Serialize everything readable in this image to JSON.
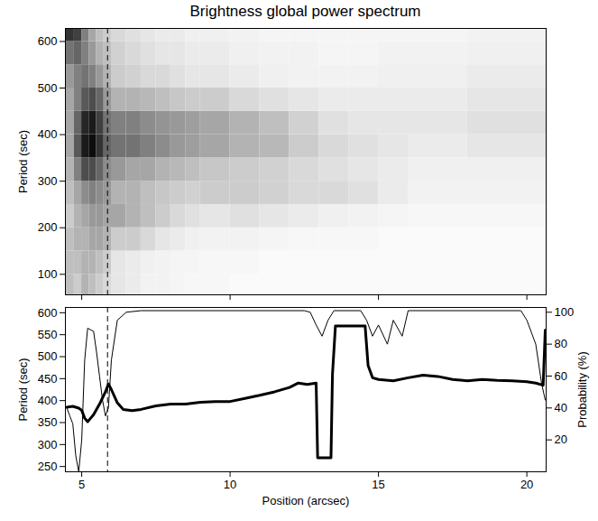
{
  "chart_data": [
    {
      "type": "heatmap",
      "title": "Brightness global power spectrum",
      "ylabel": "Period (sec)",
      "xlim": [
        4.45,
        20.65
      ],
      "xticks": [
        5,
        10,
        15,
        20
      ],
      "ylim": [
        56,
        628
      ],
      "yticks": [
        100,
        200,
        300,
        400,
        500,
        600
      ],
      "tick_labels": "y",
      "vline_x": 5.87,
      "x_bins": [
        4.45,
        4.75,
        5.0,
        5.25,
        5.5,
        5.75,
        6.0,
        6.5,
        7,
        7.5,
        8,
        8.5,
        9,
        10,
        11,
        12,
        13,
        14,
        15,
        16,
        18,
        20.65
      ],
      "y_bins": [
        56,
        100,
        150,
        200,
        250,
        300,
        350,
        400,
        450,
        500,
        550,
        600,
        628
      ],
      "zlim": [
        0,
        1
      ],
      "power": [
        [
          0.25,
          0.2,
          0.3,
          0.25,
          0.2,
          0.15,
          0.1,
          0.08,
          0.05,
          0.05,
          0.04,
          0.03,
          0.03,
          0.02,
          0.02,
          0.02,
          0.02,
          0.02,
          0.02,
          0.02,
          0.02
        ],
        [
          0.25,
          0.25,
          0.3,
          0.3,
          0.25,
          0.2,
          0.1,
          0.08,
          0.06,
          0.05,
          0.04,
          0.04,
          0.03,
          0.03,
          0.02,
          0.02,
          0.02,
          0.02,
          0.02,
          0.02,
          0.02
        ],
        [
          0.25,
          0.3,
          0.3,
          0.35,
          0.35,
          0.3,
          0.2,
          0.2,
          0.15,
          0.1,
          0.08,
          0.06,
          0.05,
          0.05,
          0.04,
          0.03,
          0.03,
          0.03,
          0.02,
          0.02,
          0.02
        ],
        [
          0.2,
          0.3,
          0.35,
          0.4,
          0.4,
          0.35,
          0.35,
          0.3,
          0.25,
          0.2,
          0.15,
          0.12,
          0.1,
          0.12,
          0.1,
          0.08,
          0.06,
          0.05,
          0.04,
          0.03,
          0.03
        ],
        [
          0.25,
          0.35,
          0.45,
          0.5,
          0.45,
          0.4,
          0.3,
          0.3,
          0.25,
          0.22,
          0.2,
          0.18,
          0.2,
          0.2,
          0.18,
          0.15,
          0.15,
          0.12,
          0.08,
          0.05,
          0.05
        ],
        [
          0.3,
          0.5,
          0.7,
          0.7,
          0.6,
          0.45,
          0.4,
          0.35,
          0.35,
          0.3,
          0.28,
          0.25,
          0.22,
          0.2,
          0.18,
          0.15,
          0.12,
          0.1,
          0.08,
          0.06,
          0.06
        ],
        [
          0.35,
          0.65,
          0.9,
          0.95,
          0.8,
          0.6,
          0.55,
          0.55,
          0.5,
          0.45,
          0.4,
          0.38,
          0.35,
          0.3,
          0.28,
          0.2,
          0.15,
          0.12,
          0.1,
          0.08,
          0.1
        ],
        [
          0.35,
          0.6,
          0.85,
          0.9,
          0.75,
          0.55,
          0.5,
          0.5,
          0.45,
          0.42,
          0.4,
          0.38,
          0.35,
          0.3,
          0.25,
          0.18,
          0.12,
          0.1,
          0.1,
          0.1,
          0.12
        ],
        [
          0.35,
          0.5,
          0.65,
          0.7,
          0.6,
          0.4,
          0.3,
          0.3,
          0.28,
          0.25,
          0.22,
          0.2,
          0.2,
          0.15,
          0.12,
          0.1,
          0.08,
          0.08,
          0.08,
          0.08,
          0.1
        ],
        [
          0.4,
          0.5,
          0.55,
          0.5,
          0.4,
          0.3,
          0.2,
          0.18,
          0.15,
          0.15,
          0.12,
          0.1,
          0.1,
          0.08,
          0.06,
          0.05,
          0.05,
          0.05,
          0.06,
          0.06,
          0.08
        ],
        [
          0.55,
          0.6,
          0.5,
          0.4,
          0.3,
          0.25,
          0.18,
          0.15,
          0.12,
          0.1,
          0.1,
          0.08,
          0.08,
          0.06,
          0.05,
          0.05,
          0.04,
          0.04,
          0.05,
          0.05,
          0.06
        ],
        [
          0.8,
          0.75,
          0.5,
          0.35,
          0.25,
          0.2,
          0.15,
          0.12,
          0.1,
          0.08,
          0.08,
          0.06,
          0.06,
          0.05,
          0.04,
          0.04,
          0.04,
          0.04,
          0.04,
          0.04,
          0.05
        ]
      ]
    },
    {
      "type": "line",
      "xlabel": "Position (arcsec)",
      "ylabel": "Period (sec)",
      "y2label": "Probability (%)",
      "xlim": [
        4.45,
        20.65
      ],
      "xticks": [
        5,
        10,
        15,
        20
      ],
      "ylim": [
        238,
        612
      ],
      "yticks": [
        250,
        300,
        350,
        400,
        450,
        500,
        550,
        600
      ],
      "y2lim": [
        0,
        103
      ],
      "y2ticks": [
        20,
        40,
        60,
        80,
        100
      ],
      "vline_x": 5.87,
      "series": [
        {
          "color": "#000000",
          "x": [
            4.5,
            4.7,
            4.9,
            5.0,
            5.1,
            5.2,
            5.3,
            5.4,
            5.6,
            5.8,
            5.9,
            6.0,
            6.2,
            6.4,
            6.7,
            7.0,
            7.5,
            8.0,
            8.5,
            9.0,
            9.5,
            10.0,
            10.5,
            11.0,
            11.5,
            12.0,
            12.3,
            12.6,
            12.9,
            12.95,
            13.4,
            13.45,
            13.55,
            14.55,
            14.65,
            14.8,
            15.0,
            15.5,
            16.0,
            16.5,
            17.0,
            17.5,
            18.0,
            18.5,
            19.0,
            19.5,
            20.0,
            20.3,
            20.55,
            20.62
          ],
          "values": [
            385,
            387,
            383,
            378,
            360,
            352,
            360,
            368,
            392,
            420,
            438,
            425,
            395,
            380,
            377,
            380,
            388,
            392,
            392,
            396,
            398,
            398,
            405,
            412,
            420,
            430,
            440,
            437,
            440,
            270,
            270,
            460,
            570,
            570,
            480,
            452,
            448,
            445,
            452,
            458,
            455,
            448,
            445,
            448,
            446,
            445,
            443,
            440,
            435,
            560
          ]
        },
        {
          "color": "#000000",
          "axis": "y2",
          "x": [
            4.5,
            4.6,
            4.7,
            4.8,
            4.9,
            5.0,
            5.1,
            5.2,
            5.4,
            5.5,
            5.6,
            5.7,
            5.8,
            5.9,
            6.0,
            6.2,
            6.5,
            7.0,
            12.5,
            12.7,
            12.9,
            13.1,
            13.3,
            13.5,
            14.4,
            14.6,
            14.8,
            15.0,
            15.3,
            15.5,
            15.8,
            16.0,
            19.8,
            20.0,
            20.3,
            20.5,
            20.62
          ],
          "values": [
            40,
            35,
            30,
            10,
            0,
            20,
            70,
            90,
            88,
            75,
            60,
            45,
            35,
            40,
            70,
            95,
            100,
            101,
            101,
            100,
            92,
            85,
            95,
            101,
            101,
            95,
            85,
            92,
            80,
            95,
            85,
            101,
            101,
            95,
            80,
            55,
            45
          ]
        }
      ]
    }
  ]
}
